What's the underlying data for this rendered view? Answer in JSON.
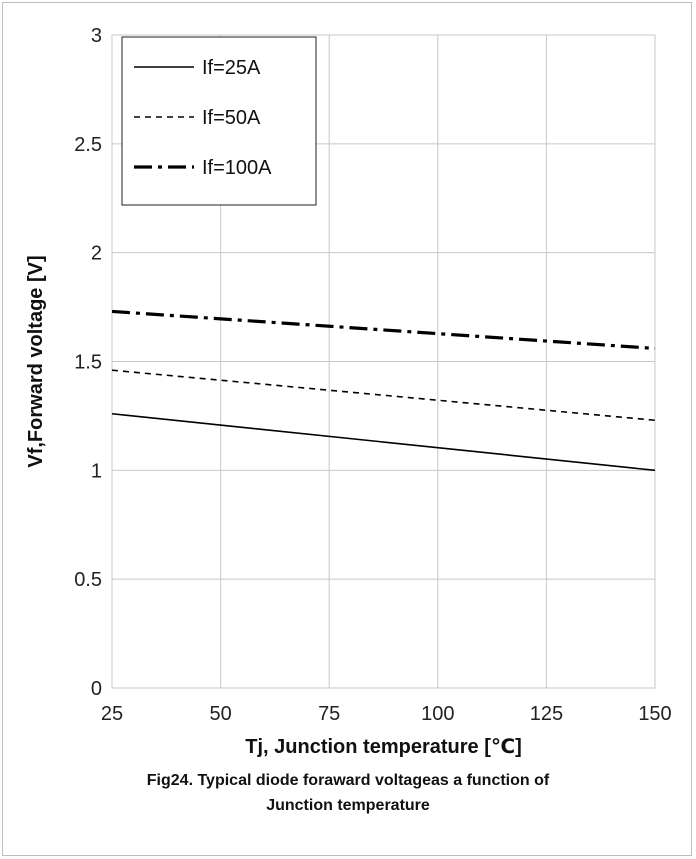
{
  "chart_data": {
    "type": "line",
    "xlabel": "Tj, Junction temperature [℃]",
    "ylabel": "Vf,Forward voltage [V]",
    "xlim": [
      25,
      150
    ],
    "ylim": [
      0,
      3
    ],
    "xticks": [
      "25",
      "50",
      "75",
      "100",
      "125",
      "150"
    ],
    "yticks": [
      "0",
      "0.5",
      "1",
      "1.5",
      "2",
      "2.5",
      "3"
    ],
    "grid": true,
    "legend_position": "top-left",
    "series": [
      {
        "name": "If=25A",
        "style": "solid",
        "color": "#000000",
        "x": [
          25,
          150
        ],
        "y": [
          1.26,
          1.0
        ]
      },
      {
        "name": "If=50A",
        "style": "dashed",
        "color": "#000000",
        "x": [
          25,
          150
        ],
        "y": [
          1.46,
          1.23
        ]
      },
      {
        "name": "If=100A",
        "style": "dash-dot",
        "color": "#000000",
        "x": [
          25,
          150
        ],
        "y": [
          1.73,
          1.56
        ]
      }
    ]
  },
  "caption": {
    "line1": "Fig24. Typical diode foraward voltageas a function of",
    "line2": "Junction temperature"
  }
}
